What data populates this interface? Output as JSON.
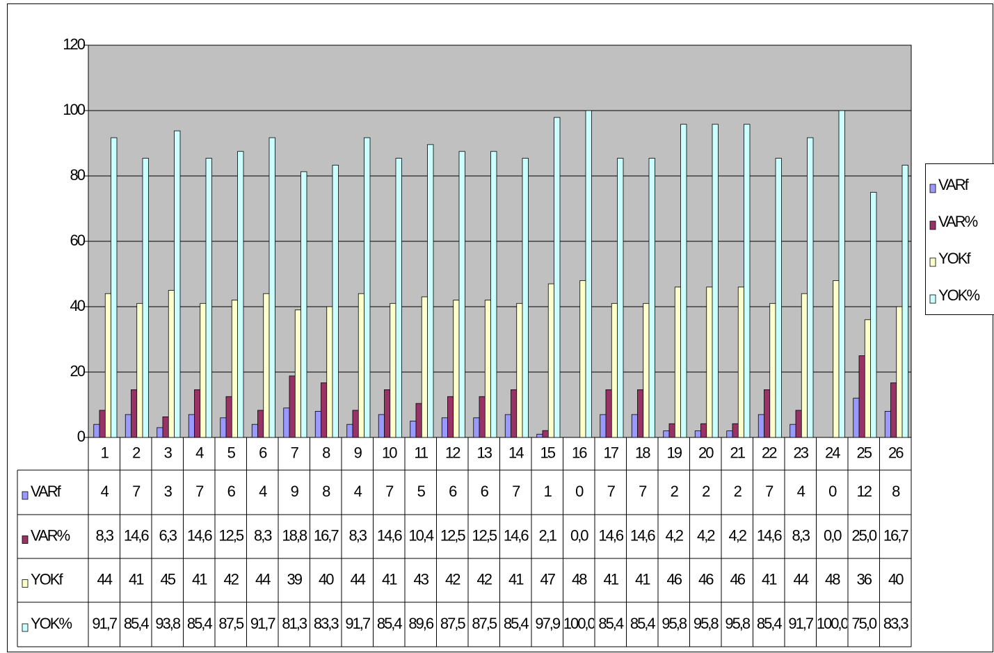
{
  "chart_data": {
    "type": "bar",
    "categories": [
      "1",
      "2",
      "3",
      "4",
      "5",
      "6",
      "7",
      "8",
      "9",
      "10",
      "11",
      "12",
      "13",
      "14",
      "15",
      "16",
      "17",
      "18",
      "19",
      "20",
      "21",
      "22",
      "23",
      "24",
      "25",
      "26"
    ],
    "series": [
      {
        "name": "VARf",
        "color": "#9999ff",
        "values": [
          4,
          7,
          3,
          7,
          6,
          4,
          9,
          8,
          4,
          7,
          5,
          6,
          6,
          7,
          1,
          0,
          7,
          7,
          2,
          2,
          2,
          7,
          4,
          0,
          12,
          8
        ]
      },
      {
        "name": "VAR%",
        "color": "#993366",
        "values": [
          8.3,
          14.6,
          6.3,
          14.6,
          12.5,
          8.3,
          18.8,
          16.7,
          8.3,
          14.6,
          10.4,
          12.5,
          12.5,
          14.6,
          2.1,
          0.0,
          14.6,
          14.6,
          4.2,
          4.2,
          4.2,
          14.6,
          8.3,
          0.0,
          25.0,
          16.7
        ],
        "value_labels": [
          "8,3",
          "14,6",
          "6,3",
          "14,6",
          "12,5",
          "8,3",
          "18,8",
          "16,7",
          "8,3",
          "14,6",
          "10,4",
          "12,5",
          "12,5",
          "14,6",
          "2,1",
          "0,0",
          "14,6",
          "14,6",
          "4,2",
          "4,2",
          "4,2",
          "14,6",
          "8,3",
          "0,0",
          "25,0",
          "16,7"
        ]
      },
      {
        "name": "YOKf",
        "color": "#ffffcc",
        "values": [
          44,
          41,
          45,
          41,
          42,
          44,
          39,
          40,
          44,
          41,
          43,
          42,
          42,
          41,
          47,
          48,
          41,
          41,
          46,
          46,
          46,
          41,
          44,
          48,
          36,
          40
        ]
      },
      {
        "name": "YOK%",
        "color": "#ccffff",
        "values": [
          91.7,
          85.4,
          93.8,
          85.4,
          87.5,
          91.7,
          81.3,
          83.3,
          91.7,
          85.4,
          89.6,
          87.5,
          87.5,
          85.4,
          97.9,
          100.0,
          85.4,
          85.4,
          95.8,
          95.8,
          95.8,
          85.4,
          91.7,
          100.0,
          75.0,
          83.3
        ],
        "value_labels": [
          "91,7",
          "85,4",
          "93,8",
          "85,4",
          "87,5",
          "91,7",
          "81,3",
          "83,3",
          "91,7",
          "85,4",
          "89,6",
          "87,5",
          "87,5",
          "85,4",
          "97,9",
          "100,0",
          "85,4",
          "85,4",
          "95,8",
          "95,8",
          "95,8",
          "85,4",
          "91,7",
          "100,0",
          "75,0",
          "83,3"
        ]
      }
    ],
    "ylim": [
      0,
      120
    ],
    "yticks": [
      0,
      20,
      40,
      60,
      80,
      100,
      120
    ],
    "grid": true,
    "plot_background": "#c0c0c0",
    "legend": "right",
    "data_table": true
  }
}
